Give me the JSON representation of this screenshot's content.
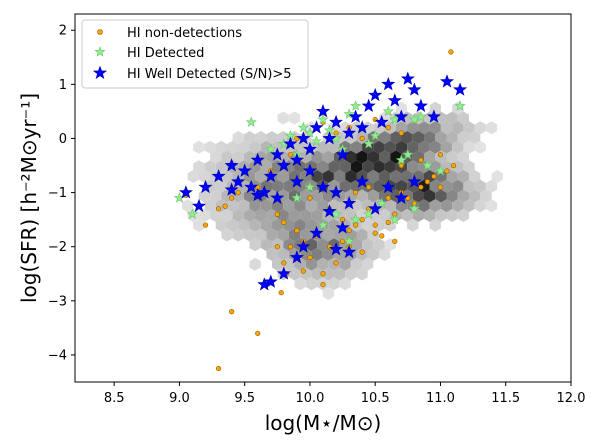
{
  "chart_data": {
    "type": "scatter",
    "xlabel": "log(M⋆/M⊙)",
    "ylabel": "log(SFR)  [h⁻²M⊙yr⁻¹]",
    "xlim": [
      8.2,
      12.0
    ],
    "ylim": [
      -4.5,
      2.3
    ],
    "xticks": [
      "8.5",
      "9.0",
      "9.5",
      "10.0",
      "10.5",
      "11.0",
      "11.5",
      "12.0"
    ],
    "yticks": [
      "−4",
      "−3",
      "−2",
      "−1",
      "0",
      "1",
      "2"
    ],
    "legend_position": "top-left",
    "background_density": "gray hexbin density of the full galaxy sample",
    "colors": {
      "non_detections": "#FFA500",
      "detected": "#90EE90",
      "well_detected": "#0000FF"
    },
    "series": [
      {
        "name": "HI non-detections",
        "marker": "circle",
        "points": [
          [
            9.05,
            -1.05
          ],
          [
            9.2,
            -1.6
          ],
          [
            9.3,
            -1.3
          ],
          [
            9.35,
            -1.25
          ],
          [
            9.4,
            -1.1
          ],
          [
            9.45,
            -1.0
          ],
          [
            9.3,
            -4.25
          ],
          [
            9.4,
            -3.2
          ],
          [
            9.6,
            -3.6
          ],
          [
            9.75,
            -1.4
          ],
          [
            9.8,
            -1.55
          ],
          [
            9.75,
            -2.0
          ],
          [
            9.8,
            -2.3
          ],
          [
            9.78,
            -2.85
          ],
          [
            9.82,
            -2.5
          ],
          [
            9.85,
            -2.0
          ],
          [
            9.9,
            -1.7
          ],
          [
            9.95,
            -1.9
          ],
          [
            10.0,
            -2.2
          ],
          [
            10.05,
            -1.8
          ],
          [
            10.1,
            -2.5
          ],
          [
            10.15,
            -2.0
          ],
          [
            10.2,
            -2.3
          ],
          [
            10.25,
            -1.9
          ],
          [
            10.3,
            -2.0
          ],
          [
            10.35,
            -1.6
          ],
          [
            10.4,
            -1.5
          ],
          [
            10.45,
            -1.3
          ],
          [
            10.5,
            -1.6
          ],
          [
            10.55,
            -1.2
          ],
          [
            10.6,
            -1.1
          ],
          [
            10.65,
            -1.4
          ],
          [
            10.7,
            -1.0
          ],
          [
            10.75,
            -1.1
          ],
          [
            10.8,
            -1.2
          ],
          [
            10.85,
            -0.9
          ],
          [
            10.9,
            -0.8
          ],
          [
            10.95,
            -0.7
          ],
          [
            11.0,
            -0.9
          ],
          [
            11.05,
            -0.6
          ],
          [
            11.1,
            -0.5
          ],
          [
            11.08,
            1.6
          ],
          [
            9.9,
            0.0
          ],
          [
            10.0,
            -0.2
          ],
          [
            10.1,
            0.3
          ],
          [
            10.2,
            0.1
          ],
          [
            10.3,
            0.2
          ],
          [
            10.4,
            0.0
          ],
          [
            10.5,
            0.35
          ],
          [
            10.6,
            0.2
          ],
          [
            10.7,
            0.1
          ],
          [
            9.85,
            -0.3
          ],
          [
            9.7,
            -0.6
          ],
          [
            9.6,
            -0.9
          ],
          [
            10.0,
            -1.1
          ],
          [
            10.15,
            -1.3
          ],
          [
            10.25,
            -1.5
          ],
          [
            10.35,
            -1.0
          ],
          [
            10.45,
            -0.9
          ],
          [
            10.55,
            -1.8
          ],
          [
            10.65,
            -1.9
          ],
          [
            9.95,
            -2.45
          ],
          [
            10.1,
            -2.7
          ],
          [
            10.3,
            -1.7
          ],
          [
            10.4,
            -2.1
          ],
          [
            10.5,
            -1.75
          ],
          [
            10.6,
            -1.55
          ],
          [
            10.7,
            -0.5
          ],
          [
            10.85,
            -0.4
          ],
          [
            11.0,
            -0.3
          ]
        ]
      },
      {
        "name": "HI Detected",
        "marker": "star",
        "points": [
          [
            9.0,
            -1.1
          ],
          [
            9.1,
            -1.4
          ],
          [
            9.55,
            0.3
          ],
          [
            9.6,
            -0.4
          ],
          [
            9.7,
            -0.2
          ],
          [
            9.8,
            -0.1
          ],
          [
            9.85,
            0.05
          ],
          [
            9.9,
            -0.3
          ],
          [
            9.95,
            0.2
          ],
          [
            10.0,
            0.1
          ],
          [
            10.05,
            -0.05
          ],
          [
            10.1,
            0.35
          ],
          [
            10.15,
            0.15
          ],
          [
            10.2,
            0.0
          ],
          [
            10.25,
            -0.2
          ],
          [
            10.3,
            0.45
          ],
          [
            10.35,
            0.6
          ],
          [
            10.4,
            0.2
          ],
          [
            10.45,
            -0.1
          ],
          [
            10.5,
            0.05
          ],
          [
            10.55,
            0.3
          ],
          [
            10.6,
            0.5
          ],
          [
            10.65,
            0.35
          ],
          [
            10.7,
            -0.4
          ],
          [
            10.75,
            -0.3
          ],
          [
            10.8,
            0.35
          ],
          [
            10.85,
            0.4
          ],
          [
            10.9,
            -0.5
          ],
          [
            11.0,
            -0.6
          ],
          [
            11.15,
            0.6
          ],
          [
            10.2,
            -1.4
          ],
          [
            10.3,
            -1.9
          ],
          [
            10.35,
            -1.5
          ],
          [
            10.45,
            -1.4
          ],
          [
            10.55,
            -1.2
          ],
          [
            10.65,
            -1.5
          ],
          [
            10.8,
            -1.3
          ],
          [
            9.9,
            -1.1
          ],
          [
            10.0,
            -0.9
          ],
          [
            10.1,
            -1.6
          ]
        ]
      },
      {
        "name": "HI Well Detected (S/N)>5",
        "marker": "star",
        "points": [
          [
            9.05,
            -1.0
          ],
          [
            9.15,
            -1.25
          ],
          [
            9.2,
            -0.9
          ],
          [
            9.3,
            -0.7
          ],
          [
            9.4,
            -0.5
          ],
          [
            9.45,
            -0.8
          ],
          [
            9.5,
            -0.6
          ],
          [
            9.55,
            -0.9
          ],
          [
            9.6,
            -0.4
          ],
          [
            9.65,
            -1.0
          ],
          [
            9.7,
            -0.7
          ],
          [
            9.75,
            -0.3
          ],
          [
            9.8,
            -0.5
          ],
          [
            9.85,
            -0.1
          ],
          [
            9.9,
            -0.4
          ],
          [
            9.95,
            0.0
          ],
          [
            10.0,
            -0.2
          ],
          [
            10.05,
            0.2
          ],
          [
            10.1,
            0.5
          ],
          [
            10.15,
            0.0
          ],
          [
            10.2,
            0.3
          ],
          [
            10.25,
            -0.3
          ],
          [
            10.3,
            0.1
          ],
          [
            10.35,
            0.4
          ],
          [
            10.4,
            0.2
          ],
          [
            10.45,
            0.6
          ],
          [
            10.5,
            0.8
          ],
          [
            10.55,
            0.3
          ],
          [
            10.6,
            1.0
          ],
          [
            10.65,
            0.7
          ],
          [
            10.7,
            0.4
          ],
          [
            10.75,
            1.1
          ],
          [
            10.8,
            0.9
          ],
          [
            10.85,
            0.6
          ],
          [
            10.95,
            0.4
          ],
          [
            11.05,
            1.05
          ],
          [
            11.15,
            0.9
          ],
          [
            9.9,
            -0.8
          ],
          [
            10.0,
            -0.6
          ],
          [
            10.1,
            -0.9
          ],
          [
            10.2,
            -1.0
          ],
          [
            10.3,
            -1.2
          ],
          [
            10.4,
            -0.8
          ],
          [
            10.5,
            -1.3
          ],
          [
            10.6,
            -0.9
          ],
          [
            10.7,
            -1.1
          ],
          [
            10.8,
            -0.8
          ],
          [
            10.15,
            -1.35
          ],
          [
            10.25,
            -1.65
          ],
          [
            10.3,
            -2.1
          ],
          [
            10.2,
            -2.05
          ],
          [
            10.05,
            -1.75
          ],
          [
            9.95,
            -2.0
          ],
          [
            9.9,
            -2.2
          ],
          [
            9.8,
            -2.5
          ],
          [
            9.7,
            -2.65
          ],
          [
            9.65,
            -2.7
          ],
          [
            9.75,
            -1.1
          ],
          [
            9.6,
            -1.05
          ],
          [
            9.4,
            -0.95
          ]
        ]
      }
    ]
  }
}
